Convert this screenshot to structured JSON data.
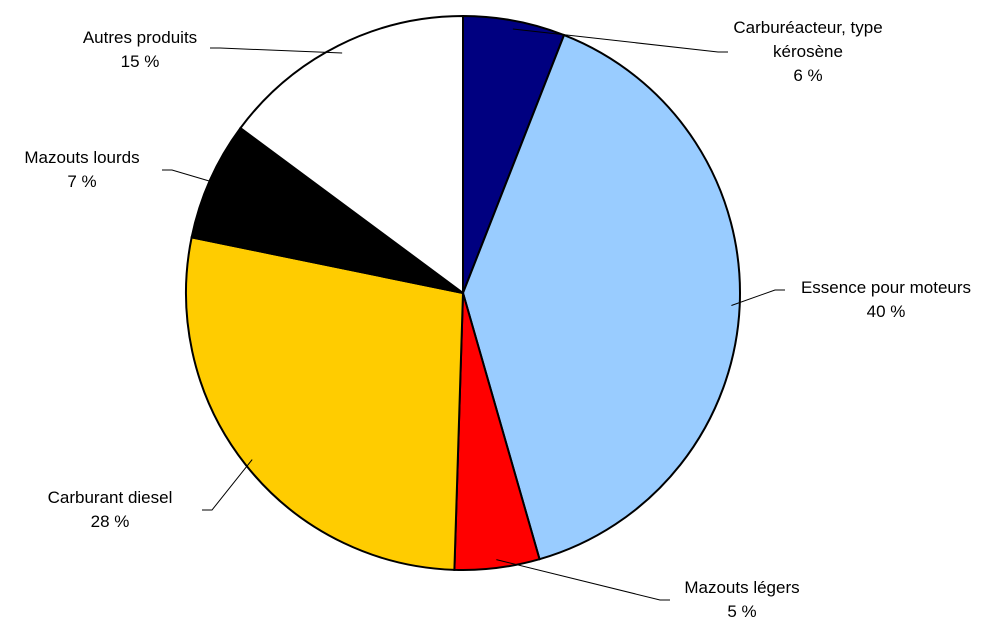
{
  "chart_data": {
    "type": "pie",
    "categories": [
      "Carburéacteur, type kérosène",
      "Essence pour moteurs",
      "Mazouts légers",
      "Carburant diesel",
      "Mazouts lourds",
      "Autres produits"
    ],
    "values": [
      6,
      40,
      5,
      28,
      7,
      15
    ],
    "value_labels": [
      "6 %",
      "40 %",
      "5 %",
      "28 %",
      "7 %",
      "15 %"
    ],
    "colors": [
      "#000080",
      "#99ccff",
      "#ff0000",
      "#ffcc00",
      "#000000",
      "#ffffff"
    ]
  }
}
